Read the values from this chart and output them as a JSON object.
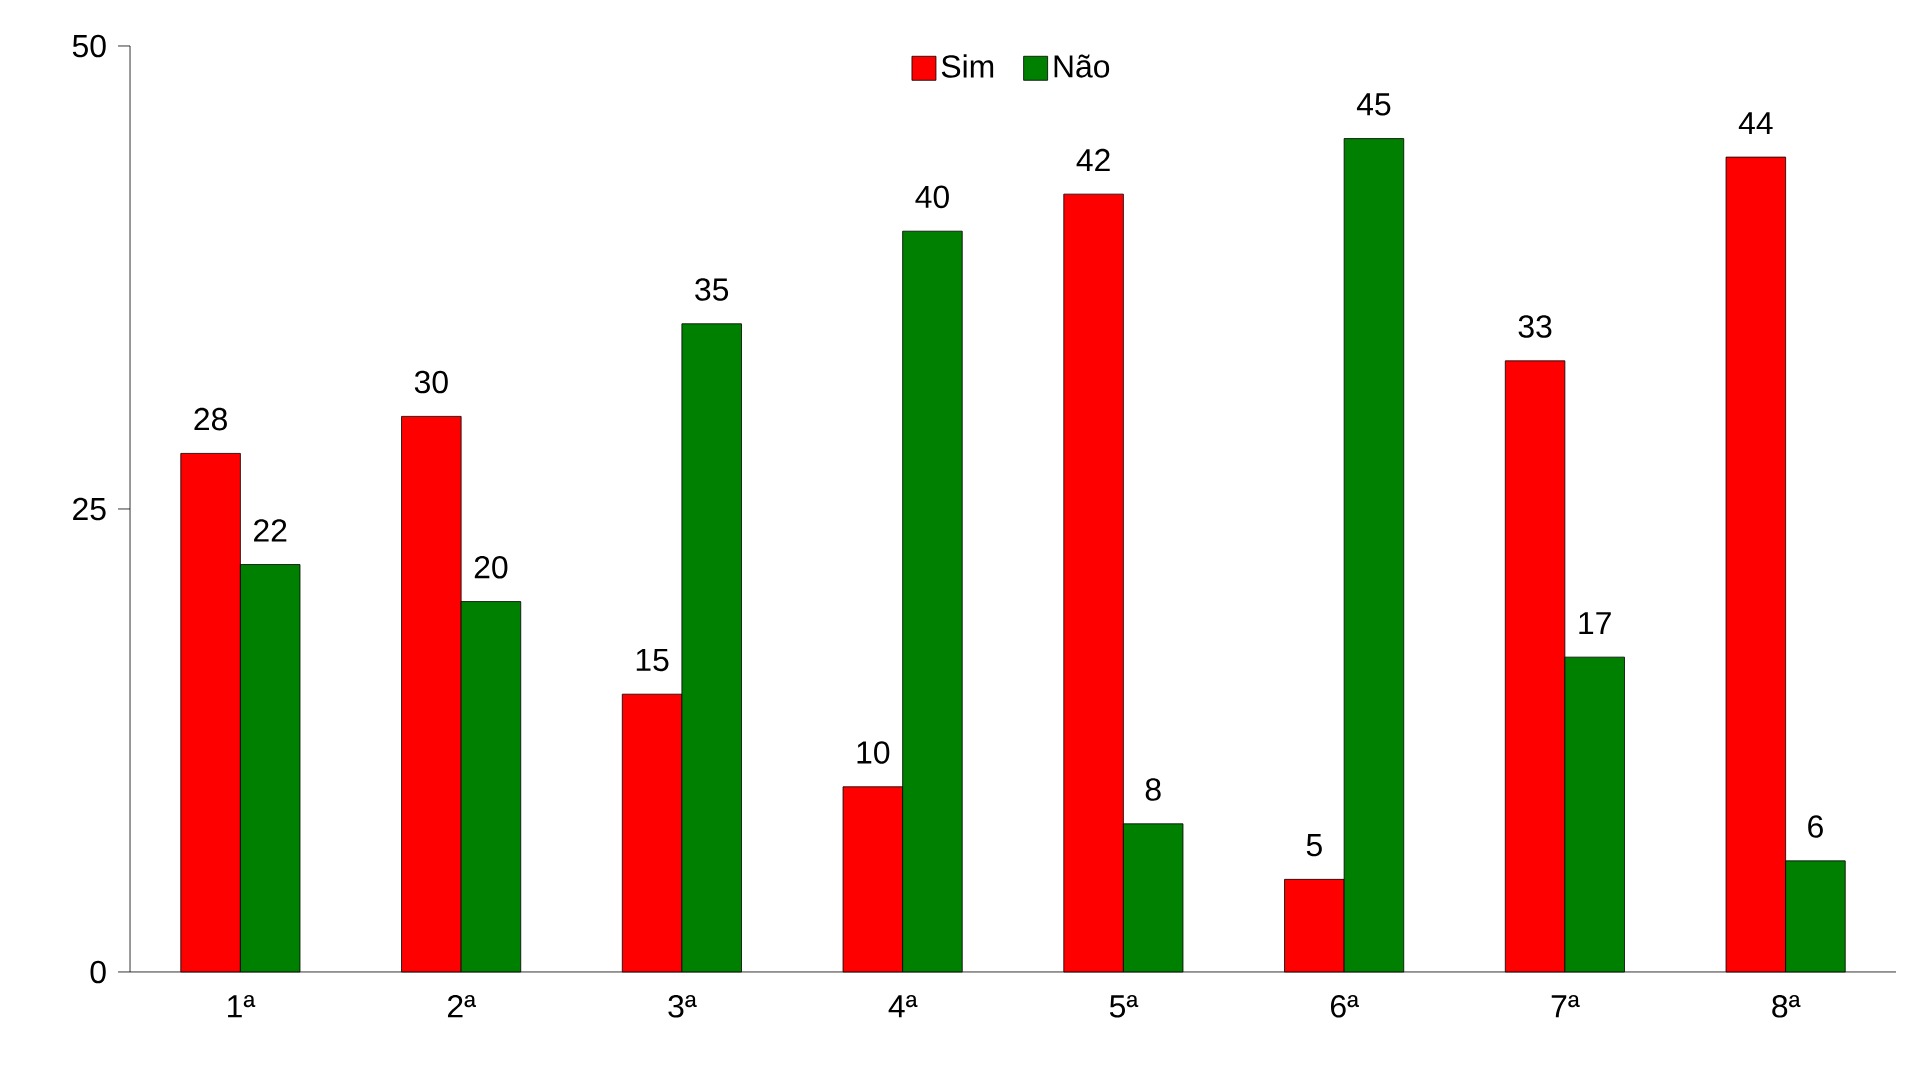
{
  "chart_data": {
    "type": "bar",
    "categories": [
      "1ª",
      "2ª",
      "3ª",
      "4ª",
      "5ª",
      "6ª",
      "7ª",
      "8ª"
    ],
    "series": [
      {
        "name": "Sim",
        "color": "#ff0000",
        "values": [
          28,
          30,
          15,
          10,
          42,
          5,
          33,
          44
        ]
      },
      {
        "name": "Não",
        "color": "#008000",
        "values": [
          22,
          20,
          35,
          40,
          8,
          45,
          17,
          6
        ]
      }
    ],
    "ylim": [
      0,
      50
    ],
    "yticks": [
      0,
      25,
      50
    ],
    "grid": false,
    "legend": "top",
    "data_labels": true
  }
}
